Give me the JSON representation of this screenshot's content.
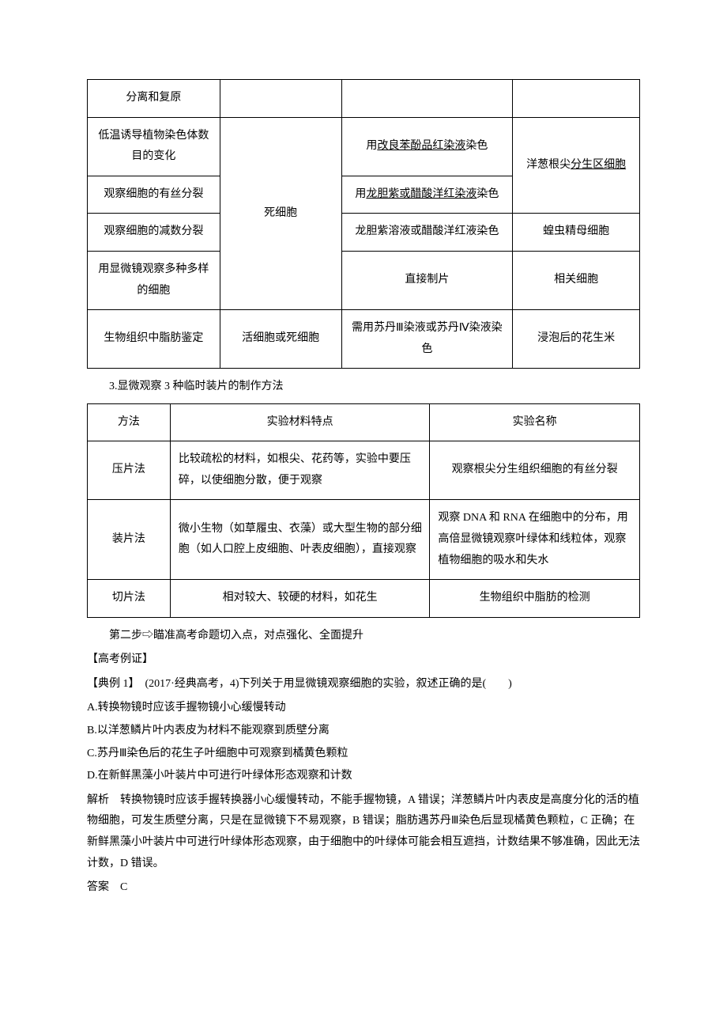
{
  "table1": {
    "rows": [
      {
        "c0": "分离和复原"
      },
      {
        "c0": "低温诱导植物染色体数目的变化",
        "c2_pre": "用",
        "c2_u": "改良苯酚品红染液",
        "c2_post": "染色"
      },
      {
        "c0": "观察细胞的有丝分裂",
        "c2_pre": "用",
        "c2_u": "龙胆紫或醋酸洋红染液",
        "c2_post": "染色"
      },
      {
        "c0": "观察细胞的减数分裂",
        "c2": "龙胆紫溶液或醋酸洋红液染色",
        "c3": "蝗虫精母细胞"
      },
      {
        "c0": "用显微镜观察多种多样的细胞",
        "c2": "直接制片",
        "c3": "相关细胞"
      },
      {
        "c0": "生物组织中脂肪鉴定",
        "c1": "活细胞或死细胞",
        "c2": "需用苏丹Ⅲ染液或苏丹Ⅳ染液染色",
        "c3": "浸泡后的花生米"
      }
    ],
    "dead_cell": "死细胞",
    "merged_right_pre": "洋葱根尖",
    "merged_right_u": "分生区细胞"
  },
  "section3_title": "3.显微观察 3 种临时装片的制作方法",
  "table2": {
    "header": {
      "c0": "方法",
      "c1": "实验材料特点",
      "c2": "实验名称"
    },
    "rows": [
      {
        "c0": "压片法",
        "c1": "比较疏松的材料，如根尖、花药等，实验中要压碎，以使细胞分散，便于观察",
        "c2": "观察根尖分生组织细胞的有丝分裂"
      },
      {
        "c0": "装片法",
        "c1": "微小生物（如草履虫、衣藻）或大型生物的部分细胞（如人口腔上皮细胞、叶表皮细胞），直接观察",
        "c2": "观察 DNA 和 RNA 在细胞中的分布，用高倍显微镜观察叶绿体和线粒体，观察植物细胞的吸水和失水"
      },
      {
        "c0": "切片法",
        "c1": "相对较大、较硬的材料，如花生",
        "c2": "生物组织中脂肪的检测"
      }
    ]
  },
  "step2": "第二步⇨瞄准高考命题切入点，对点强化、全面提升",
  "exam_proof": "【高考例证】",
  "q1_stem": "【典例 1】　(2017·经典高考，4)下列关于用显微镜观察细胞的实验，叙述正确的是(　　)",
  "q1_opts": {
    "A": "A.转换物镜时应该手握物镜小心缓慢转动",
    "B": "B.以洋葱鳞片叶内表皮为材料不能观察到质壁分离",
    "C": "C.苏丹Ⅲ染色后的花生子叶细胞中可观察到橘黄色颗粒",
    "D": "D.在新鲜黑藻小叶装片中可进行叶绿体形态观察和计数"
  },
  "q1_explain": "解析　转换物镜时应该手握转换器小心缓慢转动，不能手握物镜，A 错误；洋葱鳞片叶内表皮是高度分化的活的植物细胞，可发生质壁分离，只是在显微镜下不易观察，B 错误；脂肪遇苏丹Ⅲ染色后显现橘黄色颗粒，C 正确；在新鲜黑藻小叶装片中可进行叶绿体形态观察，由于细胞中的叶绿体可能会相互遮挡，计数结果不够准确，因此无法计数，D 错误。",
  "q1_answer": "答案　C"
}
